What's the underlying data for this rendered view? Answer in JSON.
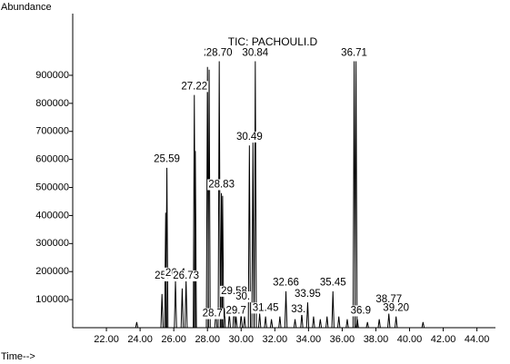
{
  "chart_data": {
    "type": "stem",
    "title": "TIC: PACHOULI.D",
    "y_label": "Abundance",
    "x_label": "Time-->",
    "color": "#000000",
    "x": [
      23.8,
      25.3,
      25.52,
      25.59,
      26.1,
      26.5,
      26.73,
      27.22,
      27.28,
      28.0,
      28.1,
      28.5,
      28.7,
      28.83,
      28.9,
      29.0,
      29.3,
      29.58,
      29.7,
      30.0,
      30.2,
      30.49,
      30.7,
      30.84,
      31.1,
      31.45,
      31.8,
      32.3,
      32.66,
      33.2,
      33.6,
      33.95,
      34.3,
      34.7,
      35.1,
      35.45,
      35.8,
      36.3,
      36.71,
      36.82,
      36.9,
      37.5,
      38.2,
      38.77,
      39.2,
      40.8
    ],
    "values": [
      20000,
      120000,
      410000,
      570000,
      170000,
      140000,
      170000,
      830000,
      630000,
      930000,
      920000,
      60000,
      950000,
      480000,
      470000,
      70000,
      50000,
      80000,
      40000,
      50000,
      40000,
      650000,
      660000,
      950000,
      50000,
      40000,
      30000,
      40000,
      130000,
      30000,
      50000,
      90000,
      40000,
      30000,
      40000,
      130000,
      40000,
      30000,
      950000,
      950000,
      30000,
      20000,
      30000,
      50000,
      40000,
      20000
    ],
    "annotations": [
      {
        "text": "25.59",
        "x": 25.59,
        "y": 600000
      },
      {
        "text": "25.",
        "x": 25.3,
        "y": 185000
      },
      {
        "text": "26.4",
        "x": 26.1,
        "y": 195000
      },
      {
        "text": "26.73",
        "x": 26.73,
        "y": 185000
      },
      {
        "text": "27.22",
        "x": 27.22,
        "y": 860000
      },
      {
        "text": "2",
        "x": 27.95,
        "y": 980000
      },
      {
        "text": "28.70",
        "x": 28.7,
        "y": 980000
      },
      {
        "text": "28.83",
        "x": 28.83,
        "y": 510000
      },
      {
        "text": "29.58",
        "x": 29.58,
        "y": 130000
      },
      {
        "text": "30.",
        "x": 30.1,
        "y": 110000
      },
      {
        "text": "28.7",
        "x": 28.3,
        "y": 50000
      },
      {
        "text": "29.7",
        "x": 29.7,
        "y": 60000
      },
      {
        "text": "30.49",
        "x": 30.49,
        "y": 680000
      },
      {
        "text": "30.84",
        "x": 30.84,
        "y": 980000
      },
      {
        "text": "31.45",
        "x": 31.45,
        "y": 70000
      },
      {
        "text": "32.66",
        "x": 32.66,
        "y": 160000
      },
      {
        "text": "33.95",
        "x": 33.95,
        "y": 120000
      },
      {
        "text": "33.",
        "x": 33.4,
        "y": 65000
      },
      {
        "text": "35.45",
        "x": 35.45,
        "y": 160000
      },
      {
        "text": "36.71",
        "x": 36.71,
        "y": 980000
      },
      {
        "text": "36.9",
        "x": 37.1,
        "y": 60000
      },
      {
        "text": "38.77",
        "x": 38.77,
        "y": 100000
      },
      {
        "text": "39.20",
        "x": 39.2,
        "y": 70000
      }
    ],
    "xlim": [
      20,
      45.1
    ],
    "ylim": [
      0,
      1120000
    ],
    "xticks": [
      {
        "value": 22,
        "label": "22.00"
      },
      {
        "value": 24,
        "label": "24.00"
      },
      {
        "value": 26,
        "label": "26.00"
      },
      {
        "value": 28,
        "label": "28.00"
      },
      {
        "value": 30,
        "label": "30.00"
      },
      {
        "value": 32,
        "label": "32.00"
      },
      {
        "value": 34,
        "label": "34.00"
      },
      {
        "value": 36,
        "label": "36.00"
      },
      {
        "value": 38,
        "label": "38.00"
      },
      {
        "value": 40,
        "label": "40.00"
      },
      {
        "value": 42,
        "label": "42.00"
      },
      {
        "value": 44,
        "label": "44.00"
      }
    ],
    "yticks": [
      100000,
      200000,
      300000,
      400000,
      500000,
      600000,
      700000,
      800000,
      900000
    ],
    "grid": false
  }
}
